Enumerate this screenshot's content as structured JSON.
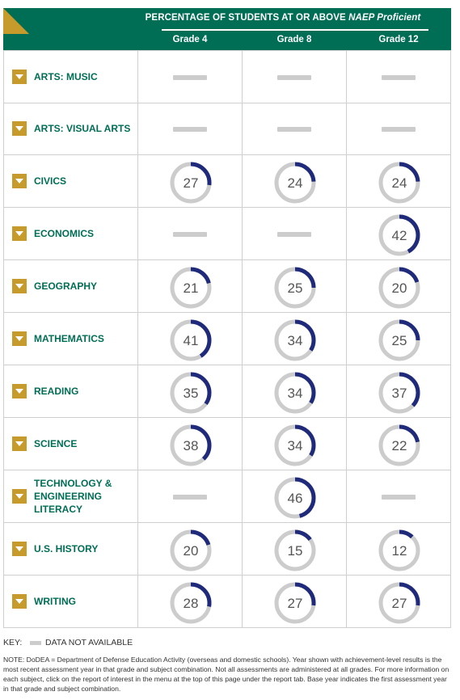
{
  "header": {
    "title_prefix": "PERCENTAGE OF STUDENTS AT OR ABOVE ",
    "title_em": "NAEP Proficient",
    "grades": [
      "Grade 4",
      "Grade 8",
      "Grade 12"
    ]
  },
  "colors": {
    "green": "#006e55",
    "gold": "#c69a2b",
    "arc": "#1f2a7a",
    "ring": "#cccccc"
  },
  "chart_data": {
    "type": "table",
    "value_unit": "percent",
    "columns": [
      "Grade 4",
      "Grade 8",
      "Grade 12"
    ],
    "rows": [
      {
        "subject": "ARTS: MUSIC",
        "values": [
          null,
          null,
          null
        ]
      },
      {
        "subject": "ARTS: VISUAL ARTS",
        "values": [
          null,
          null,
          null
        ]
      },
      {
        "subject": "CIVICS",
        "values": [
          27,
          24,
          24
        ]
      },
      {
        "subject": "ECONOMICS",
        "values": [
          null,
          null,
          42
        ]
      },
      {
        "subject": "GEOGRAPHY",
        "values": [
          21,
          25,
          20
        ]
      },
      {
        "subject": "MATHEMATICS",
        "values": [
          41,
          34,
          25
        ]
      },
      {
        "subject": "READING",
        "values": [
          35,
          34,
          37
        ]
      },
      {
        "subject": "SCIENCE",
        "values": [
          38,
          34,
          22
        ]
      },
      {
        "subject": "TECHNOLOGY & ENGINEERING LITERACY",
        "values": [
          null,
          46,
          null
        ]
      },
      {
        "subject": "U.S. HISTORY",
        "values": [
          20,
          15,
          12
        ]
      },
      {
        "subject": "WRITING",
        "values": [
          28,
          27,
          27
        ]
      }
    ]
  },
  "key": {
    "label": "KEY:",
    "text": "DATA NOT AVAILABLE"
  },
  "note": "NOTE: DoDEA = Department of Defense Education Activity (overseas and domestic schools). Year shown with achievement-level results is the most recent assessment year in that grade and subject combination. Not all assessments are administered at all grades. For more information on each subject, click on the report of interest in the menu at the top of this page under the report tab. Base year indicates the first assessment year in that grade and subject combination."
}
